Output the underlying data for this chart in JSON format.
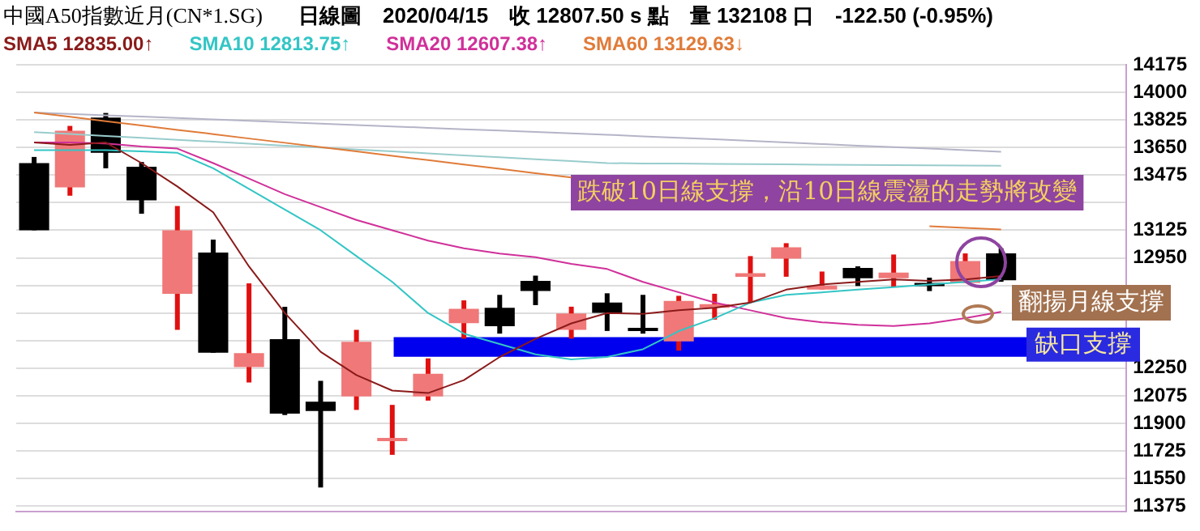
{
  "chart_data": {
    "type": "candlestick",
    "title": "中國A50指數近月(CN*1.SG)",
    "subtitle": "日線圖　2020/04/15　收 12807.50 s 點　量 132108 口　-122.50 (-0.95%)",
    "categories": [
      null,
      null,
      null,
      null,
      null,
      null,
      null,
      null,
      null,
      null,
      null,
      null,
      null,
      null,
      null,
      null,
      null,
      null,
      null,
      null,
      null,
      null,
      null,
      null,
      null,
      null,
      null,
      null,
      null,
      null,
      null
    ],
    "ohlc": [
      [
        13551,
        13590,
        13125,
        13125
      ],
      [
        13397,
        13787,
        13344,
        13757
      ],
      [
        13840,
        13869,
        13518,
        13617
      ],
      [
        13528,
        13558,
        13230,
        13315
      ],
      [
        12722,
        13279,
        12493,
        13125
      ],
      [
        12984,
        13066,
        12348,
        12348
      ],
      [
        12257,
        12788,
        12159,
        12345
      ],
      [
        12434,
        12640,
        11952,
        11962
      ],
      [
        12037,
        12169,
        11493,
        11978
      ],
      [
        12070,
        12493,
        11985,
        12417
      ],
      [
        11788,
        12017,
        11700,
        11808
      ],
      [
        12070,
        12312,
        12044,
        12214
      ],
      [
        12535,
        12680,
        12437,
        12627
      ],
      [
        12633,
        12715,
        12469,
        12516
      ],
      [
        12804,
        12837,
        12650,
        12739
      ],
      [
        12493,
        12640,
        12437,
        12597
      ],
      [
        12666,
        12725,
        12486,
        12601
      ],
      [
        12506,
        12715,
        12469,
        12486
      ],
      [
        12420,
        12709,
        12361,
        12676
      ],
      [
        12633,
        12722,
        12558,
        12656
      ],
      [
        12830,
        12961,
        12666,
        12853
      ],
      [
        12945,
        13043,
        12830,
        13017
      ],
      [
        12749,
        12863,
        12749,
        12774
      ],
      [
        12886,
        12896,
        12771,
        12820
      ],
      [
        12820,
        12971,
        12764,
        12857
      ],
      [
        12791,
        12824,
        12739,
        12778
      ],
      [
        12791,
        12978,
        12791,
        12929
      ],
      [
        12978,
        13010,
        12798,
        12807.5
      ],
      null,
      null,
      null
    ],
    "colors": [
      "#000000",
      "#f07878",
      "#000000",
      "#000000",
      "#f07878",
      "#000000",
      "#f07878",
      "#000000",
      "#000000",
      "#f07878",
      "#f07878",
      "#f07878",
      "#f07878",
      "#000000",
      "#000000",
      "#f07878",
      "#000000",
      "#000000",
      "#f07878",
      "#f07878",
      "#f07878",
      "#f07878",
      "#f07878",
      "#000000",
      "#f07878",
      "#000000",
      "#f07878",
      "#000000",
      null,
      null,
      null
    ],
    "series": [
      {
        "type": "line",
        "name": "SMA5 12835.00↑",
        "color": "#8b1a1a",
        "values": [
          13682,
          13666,
          13682,
          13551,
          13403,
          13239,
          12895,
          12600,
          12354,
          12206,
          12108,
          12092,
          12174,
          12321,
          12436,
          12534,
          12600,
          12594,
          12617,
          12633,
          12666,
          12748,
          12781,
          12797,
          12813,
          12804,
          12813,
          12835,
          null,
          null,
          null
        ]
      },
      {
        "type": "line",
        "name": "SMA10 12813.75↑",
        "color": "#33c5c5",
        "values": [
          13633,
          13633,
          13633,
          13626,
          13616,
          13518,
          13387,
          13256,
          13125,
          12961,
          12797,
          12600,
          12469,
          12403,
          12338,
          12305,
          12321,
          12370,
          12485,
          12567,
          12666,
          12715,
          12731,
          12748,
          12764,
          12781,
          12797,
          12813.75,
          null,
          null,
          null
        ]
      },
      {
        "type": "line",
        "name": "SMA20 12607.38↑",
        "color": "#d0309a",
        "values": [
          13682,
          13682,
          13675,
          13656,
          13643,
          13551,
          13453,
          13354,
          13272,
          13190,
          13125,
          13059,
          13010,
          12977,
          12954,
          12912,
          12879,
          12797,
          12731,
          12666,
          12617,
          12567,
          12541,
          12525,
          12518,
          12534,
          12567,
          12607.38,
          null,
          null,
          null
        ]
      },
      {
        "type": "line",
        "name": "SMA60 13129.63↓",
        "color": "#e07b39",
        "values": [
          13872,
          13845,
          13817,
          13790,
          13762,
          13735,
          13707,
          13680,
          13652,
          13625,
          13597,
          13570,
          13542,
          13515,
          13487,
          13460,
          null,
          null,
          null,
          null,
          null,
          null,
          null,
          null,
          null,
          13150,
          13140,
          13129.63,
          null,
          null,
          null
        ]
      },
      {
        "type": "line",
        "color": "#b4b4c8",
        "values": [
          13872,
          13863,
          13854,
          13846,
          13837,
          13828,
          13819,
          13810,
          13802,
          13793,
          13784,
          13775,
          13766,
          13758,
          13749,
          13740,
          13731,
          13721,
          13711,
          13702,
          13692,
          13682,
          13672,
          13662,
          13652,
          13643,
          13633,
          13623,
          null,
          null,
          null
        ]
      },
      {
        "type": "line",
        "color": "#99cccc",
        "values": [
          13748,
          13736,
          13723,
          13711,
          13699,
          13687,
          13674,
          13662,
          13650,
          13637,
          13625,
          13613,
          13600,
          13588,
          13576,
          13564,
          13551,
          13549,
          13548,
          13546,
          13545,
          13543,
          13541,
          13540,
          13538,
          13537,
          13535,
          13534,
          null,
          null,
          null
        ]
      }
    ],
    "ylim": [
      11340,
      14175
    ],
    "yticks": [
      14175,
      14000,
      13825,
      13650,
      13475,
      {
        "value": 13300,
        "label": null
      },
      13125,
      12950,
      {
        "value": 12775,
        "label": null
      },
      {
        "value": 12600,
        "label": null
      },
      {
        "value": 12425,
        "label": null
      },
      12250,
      12075,
      11900,
      11725,
      11550,
      11375
    ],
    "bands": [
      {
        "axis": "y",
        "from": 12322,
        "to": 12447,
        "label": "缺口支撐",
        "color": "#0000ee"
      }
    ],
    "annotations": [
      "跌破10日線支撐，沿10日線震盪的走勢將改變",
      "翻揚月線支撐"
    ],
    "grid": "y",
    "legend": "top",
    "tick_labels": "y"
  }
}
